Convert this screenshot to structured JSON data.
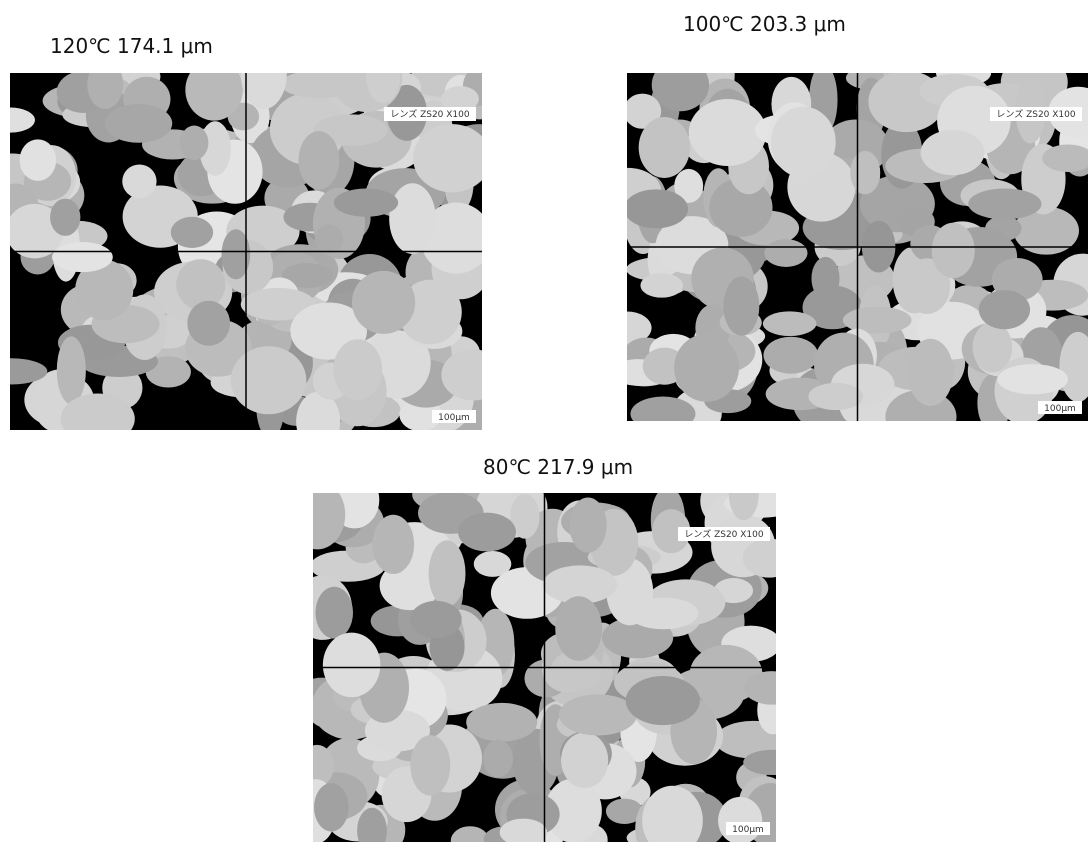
{
  "panels": [
    {
      "caption": "120℃ 174.1 μm",
      "lens_label": "レンズ ZS20 X100",
      "scale_label": "100μm"
    },
    {
      "caption": "100℃ 203.3 μm",
      "lens_label": "レンズ ZS20 X100",
      "scale_label": "100μm"
    },
    {
      "caption": "80℃ 217.9 μm",
      "lens_label": "レンズ ZS20 X100",
      "scale_label": "100μm"
    }
  ]
}
